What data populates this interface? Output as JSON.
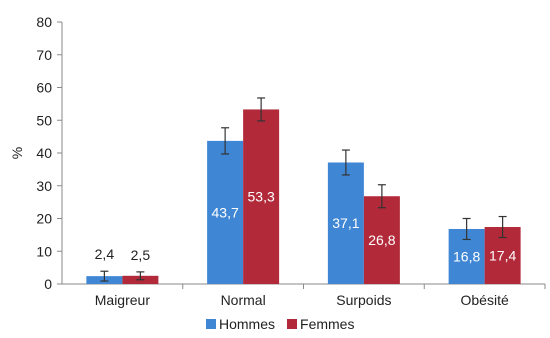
{
  "chart_data": {
    "type": "bar",
    "title": "",
    "xlabel": "",
    "ylabel": "%",
    "ylim": [
      0,
      80
    ],
    "yticks": [
      0,
      10,
      20,
      30,
      40,
      50,
      60,
      70,
      80
    ],
    "grid": false,
    "legend": "bottom",
    "categories": [
      "Maigreur",
      "Normal",
      "Surpoids",
      "Obésité"
    ],
    "series": [
      {
        "name": "Hommes",
        "color": "#3f87d4",
        "values": [
          2.4,
          43.7,
          37.1,
          16.8
        ],
        "labels": [
          "2,4",
          "43,7",
          "37,1",
          "16,8"
        ],
        "error": [
          1.5,
          4.0,
          3.8,
          3.2
        ]
      },
      {
        "name": "Femmes",
        "color": "#b22a3a",
        "values": [
          2.5,
          53.3,
          26.8,
          17.4
        ],
        "labels": [
          "2,5",
          "53,3",
          "26,8",
          "17,4"
        ],
        "error": [
          1.2,
          3.5,
          3.5,
          3.2
        ]
      }
    ]
  }
}
